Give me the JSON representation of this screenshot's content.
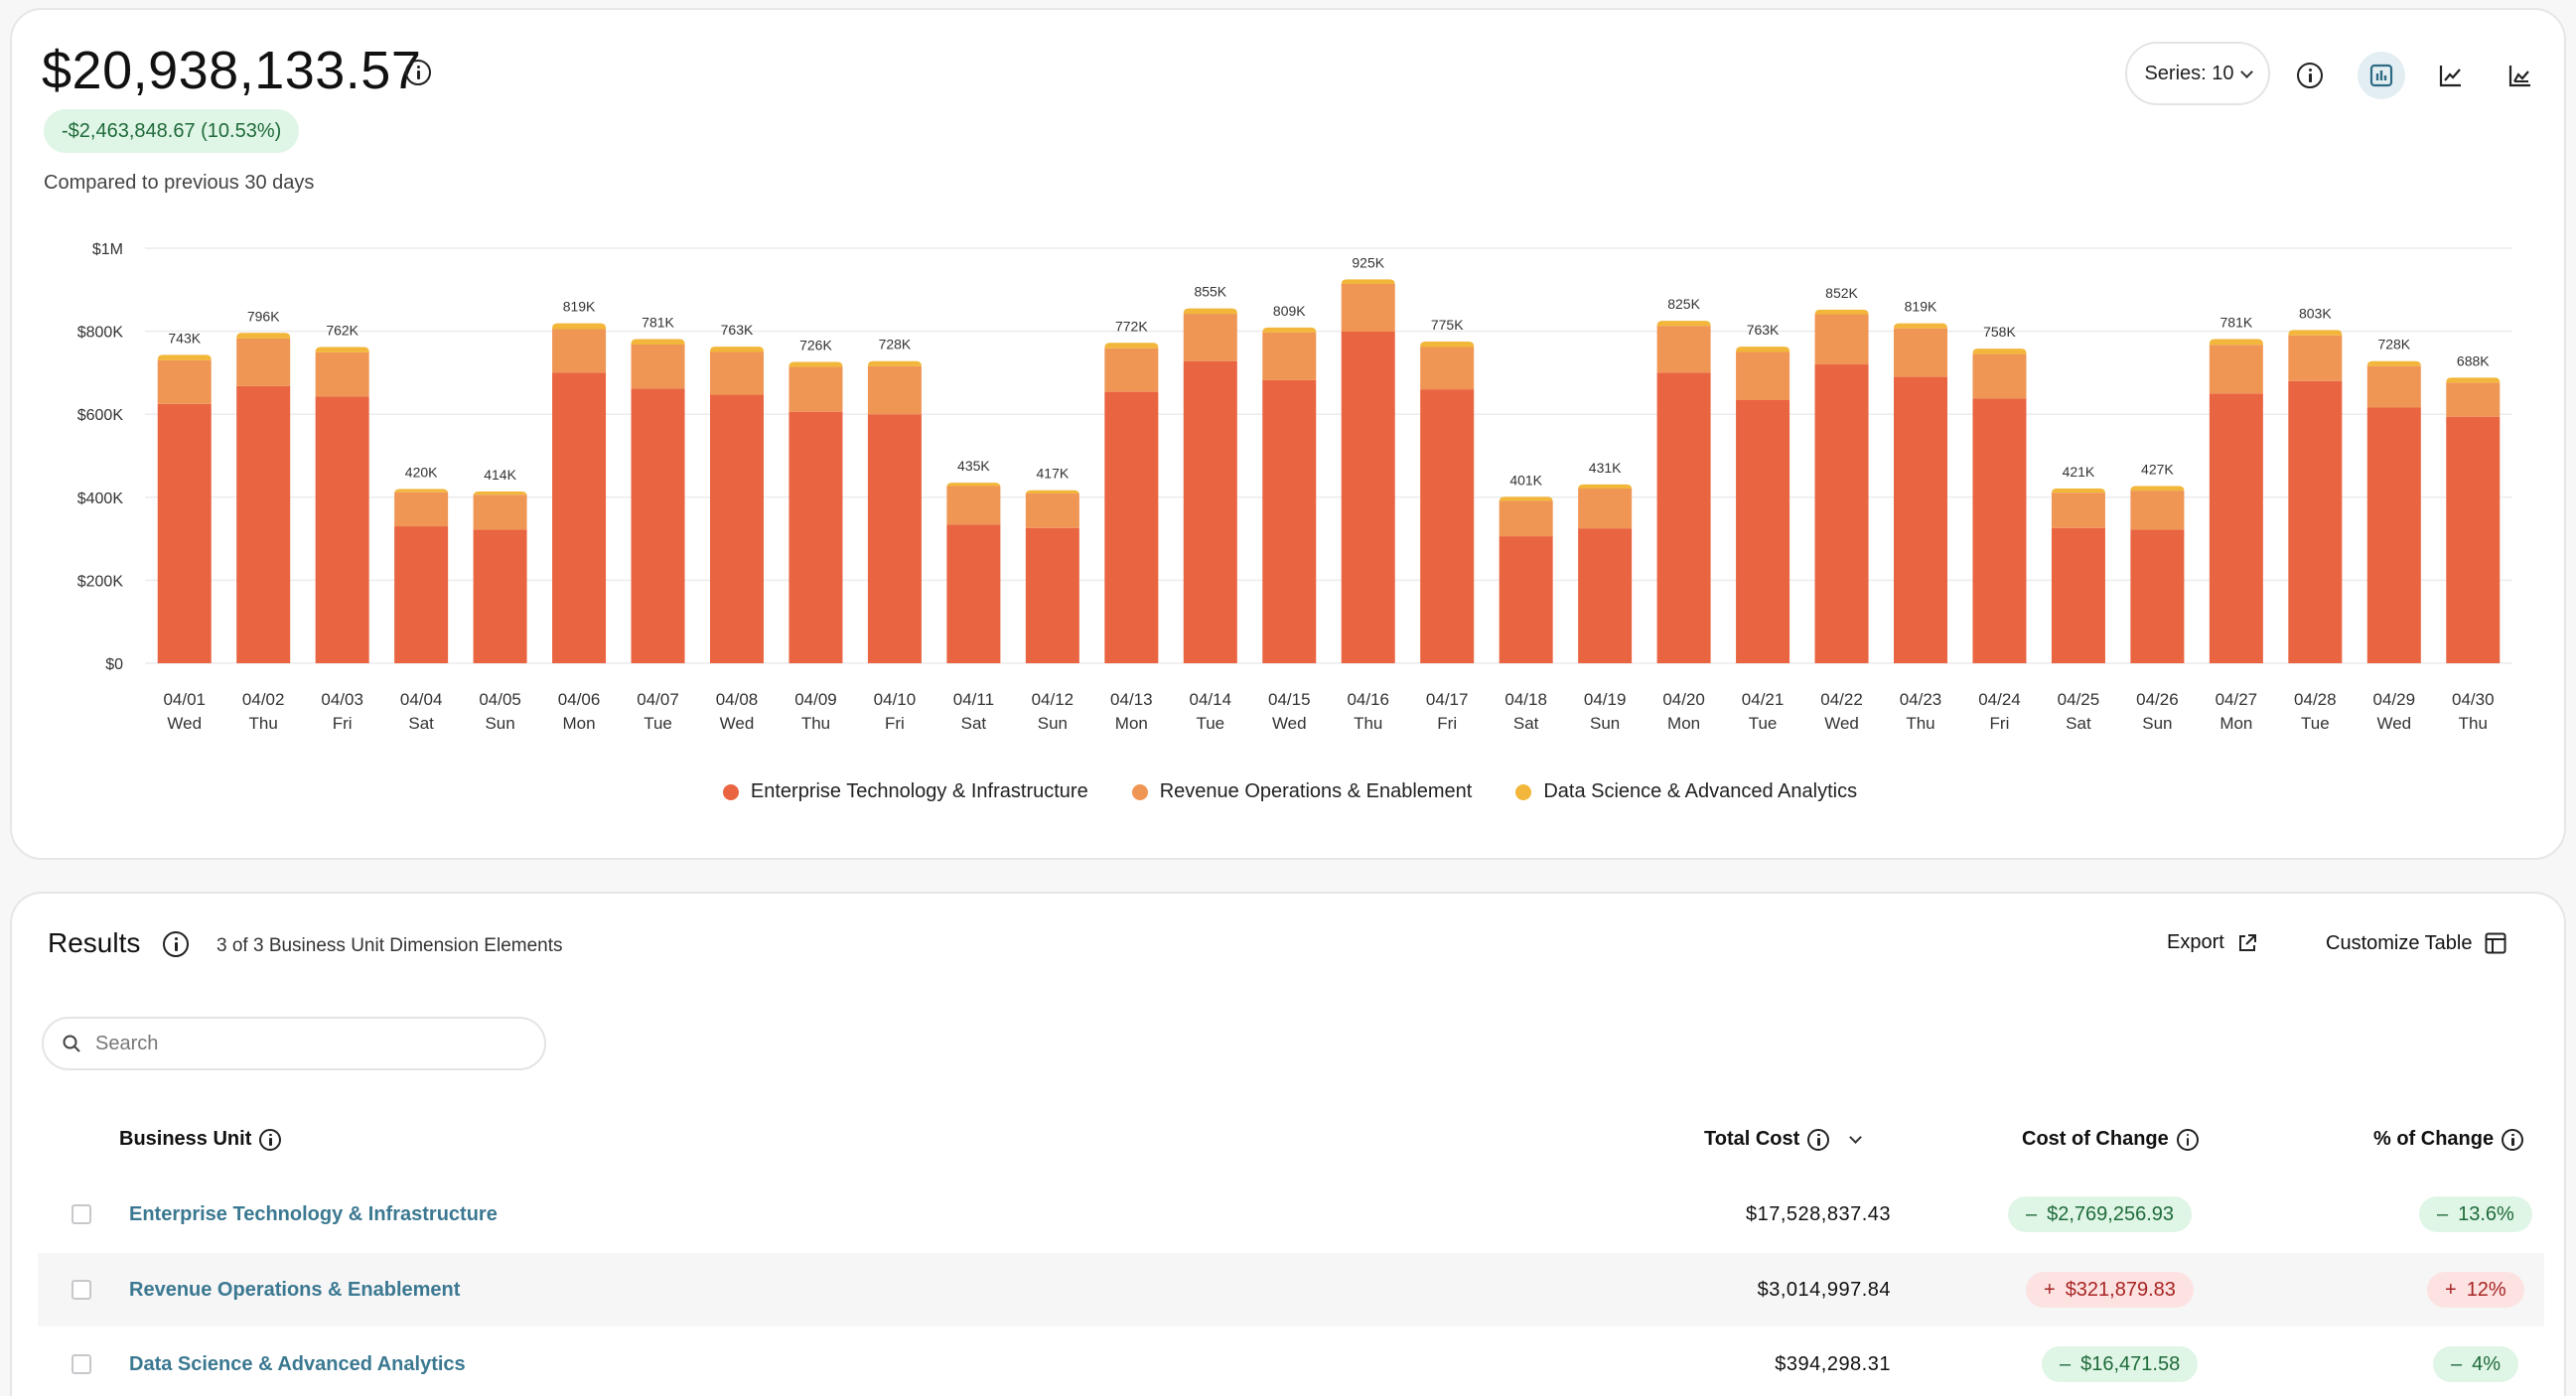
{
  "header": {
    "total_value": "$20,938,133.57",
    "delta_text": "-$2,463,848.67 (10.53%)",
    "compare_text": "Compared to previous 30 days",
    "series_select": "Series: 10"
  },
  "toolbar": {
    "icons": [
      "info-icon",
      "bar-chart-icon",
      "line-chart-icon",
      "area-chart-icon"
    ],
    "active": "bar-chart-icon"
  },
  "colors": {
    "enterprise": "#e96440",
    "revenue": "#f09655",
    "data_science": "#f2b63a",
    "accent": "#3b7891"
  },
  "chart_data": {
    "type": "bar",
    "stacked": true,
    "ylim": [
      0,
      1000000
    ],
    "yticks": [
      {
        "value": 0,
        "label": "$0"
      },
      {
        "value": 200000,
        "label": "$200K"
      },
      {
        "value": 400000,
        "label": "$400K"
      },
      {
        "value": 600000,
        "label": "$600K"
      },
      {
        "value": 800000,
        "label": "$800K"
      },
      {
        "value": 1000000,
        "label": "$1M"
      }
    ],
    "grid": true,
    "legend_position": "bottom-center",
    "categories": [
      "04/01",
      "04/02",
      "04/03",
      "04/04",
      "04/05",
      "04/06",
      "04/07",
      "04/08",
      "04/09",
      "04/10",
      "04/11",
      "04/12",
      "04/13",
      "04/14",
      "04/15",
      "04/16",
      "04/17",
      "04/18",
      "04/19",
      "04/20",
      "04/21",
      "04/22",
      "04/23",
      "04/24",
      "04/25",
      "04/26",
      "04/27",
      "04/28",
      "04/29",
      "04/30"
    ],
    "weekdays": [
      "Wed",
      "Thu",
      "Fri",
      "Sat",
      "Sun",
      "Mon",
      "Tue",
      "Wed",
      "Thu",
      "Fri",
      "Sat",
      "Sun",
      "Mon",
      "Tue",
      "Wed",
      "Thu",
      "Fri",
      "Sat",
      "Sun",
      "Mon",
      "Tue",
      "Wed",
      "Thu",
      "Fri",
      "Sat",
      "Sun",
      "Mon",
      "Tue",
      "Wed",
      "Thu"
    ],
    "totals_labels": [
      "743K",
      "796K",
      "762K",
      "420K",
      "414K",
      "819K",
      "781K",
      "763K",
      "726K",
      "728K",
      "435K",
      "417K",
      "772K",
      "855K",
      "809K",
      "925K",
      "775K",
      "401K",
      "431K",
      "825K",
      "763K",
      "852K",
      "819K",
      "758K",
      "421K",
      "427K",
      "781K",
      "803K",
      "728K",
      "688K"
    ],
    "series": [
      {
        "name": "Enterprise Technology & Infrastructure",
        "values": [
          625000,
          668000,
          643000,
          330000,
          322000,
          700000,
          662000,
          647000,
          606000,
          600000,
          334000,
          326000,
          654000,
          728000,
          682000,
          799000,
          660000,
          306000,
          325000,
          700000,
          634000,
          720000,
          690000,
          638000,
          326000,
          322000,
          650000,
          680000,
          616000,
          594000
        ]
      },
      {
        "name": "Revenue Operations & Enablement",
        "values": [
          105000,
          115000,
          106000,
          82000,
          84000,
          105000,
          106000,
          103000,
          108000,
          116000,
          93000,
          83000,
          105000,
          114000,
          115000,
          115000,
          102000,
          85000,
          96000,
          113000,
          116000,
          121000,
          117000,
          107000,
          85000,
          94000,
          117000,
          110000,
          100000,
          82000
        ]
      },
      {
        "name": "Data Science & Advanced Analytics",
        "values": [
          13000,
          13000,
          13000,
          8000,
          8000,
          14000,
          13000,
          13000,
          12000,
          12000,
          8000,
          8000,
          13000,
          13000,
          12000,
          11000,
          13000,
          10000,
          10000,
          12000,
          13000,
          11000,
          12000,
          13000,
          10000,
          11000,
          14000,
          13000,
          12000,
          12000
        ]
      }
    ]
  },
  "results": {
    "title": "Results",
    "count_text": "3 of 3 Business Unit Dimension Elements",
    "export_label": "Export",
    "customize_label": "Customize Table",
    "search_placeholder": "Search",
    "columns": {
      "business_unit": "Business Unit",
      "total_cost": "Total Cost",
      "cost_of_change": "Cost of Change",
      "pct_change": "% of Change"
    },
    "rows": [
      {
        "name": "Enterprise Technology & Infrastructure",
        "total_cost": "$17,528,837.43",
        "cost_change": "$2,769,256.93",
        "pct_change": "13.6%",
        "direction": "down",
        "sign": "–"
      },
      {
        "name": "Revenue Operations & Enablement",
        "total_cost": "$3,014,997.84",
        "cost_change": "$321,879.83",
        "pct_change": "12%",
        "direction": "up",
        "sign": "+"
      },
      {
        "name": "Data Science & Advanced Analytics",
        "total_cost": "$394,298.31",
        "cost_change": "$16,471.58",
        "pct_change": "4%",
        "direction": "down",
        "sign": "–"
      }
    ]
  }
}
